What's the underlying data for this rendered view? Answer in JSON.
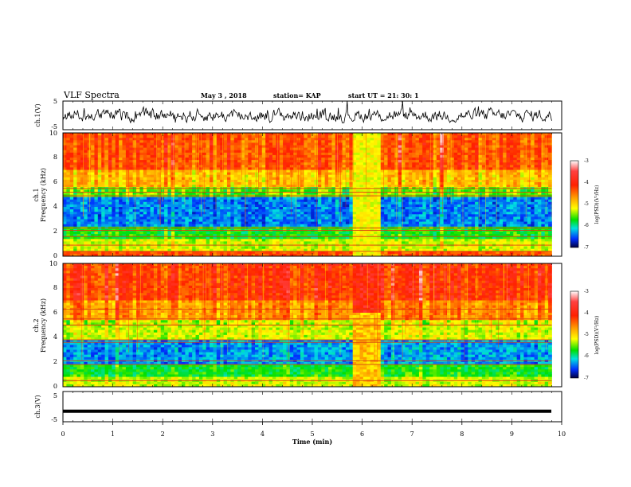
{
  "header": {
    "title": "VLF Spectra",
    "date": "May 3  , 2018",
    "station": "station= KAP",
    "start": "start  UT  =   21: 30: 1"
  },
  "chart_data": [
    {
      "type": "line",
      "name": "ch1-waveform",
      "ylabel": "ch.1(V)",
      "ylim": [
        -5,
        5
      ],
      "yticks": [
        "5",
        "-5"
      ],
      "xlim": [
        0,
        10
      ],
      "trace_center": 0.0,
      "trace_amplitude_approx": 2.2
    },
    {
      "type": "heatmap",
      "name": "ch1-spectrogram",
      "ylabel": "ch.1\nFrequency (kHz)",
      "ylim": [
        0,
        10
      ],
      "yticks": [
        "0",
        "2",
        "4",
        "6",
        "8",
        "10"
      ],
      "xlim": [
        0,
        10
      ],
      "data_end_min": 9.8,
      "colorbar": {
        "label": "log(PSD)(V²/Hz)",
        "range": [
          -7,
          -3
        ],
        "ticks": [
          "-3",
          "-4",
          "-5",
          "-6",
          "-7"
        ]
      },
      "bands_kHz_logpsd": [
        [
          0,
          0.5,
          -4.0
        ],
        [
          0.5,
          1.5,
          -5.0
        ],
        [
          1.5,
          2.5,
          -5.5
        ],
        [
          2.5,
          4.8,
          -6.3
        ],
        [
          4.8,
          5.6,
          -5.3
        ],
        [
          5.6,
          7.0,
          -4.6
        ],
        [
          7.0,
          10,
          -4.0
        ]
      ],
      "horizontal_lines_kHz": [
        0.4,
        0.9,
        1.6,
        2.1,
        2.3,
        4.9,
        5.2,
        5.5
      ],
      "anomaly_min": [
        5.8,
        6.35
      ]
    },
    {
      "type": "heatmap",
      "name": "ch2-spectrogram",
      "ylabel": "ch.2\nFrequency (kHz)",
      "ylim": [
        0,
        10
      ],
      "yticks": [
        "0",
        "2",
        "4",
        "6",
        "8",
        "10"
      ],
      "xlim": [
        0,
        10
      ],
      "data_end_min": 9.8,
      "colorbar": {
        "label": "log(PSD)(V²/Hz)",
        "range": [
          -7,
          -3
        ],
        "ticks": [
          "-3",
          "-4",
          "-5",
          "-6",
          "-7"
        ]
      },
      "bands_kHz_logpsd": [
        [
          0,
          0.8,
          -5.0
        ],
        [
          0.8,
          1.8,
          -5.5
        ],
        [
          1.8,
          3.8,
          -6.2
        ],
        [
          3.8,
          5.5,
          -5.0
        ],
        [
          5.5,
          7.0,
          -4.3
        ],
        [
          7.0,
          10,
          -3.8
        ]
      ],
      "horizontal_lines_kHz": [
        0.5,
        1.8,
        2.1,
        3.6,
        3.8,
        5.0,
        5.5,
        6.3
      ],
      "anomaly_min": [
        5.8,
        6.35
      ]
    },
    {
      "type": "line",
      "name": "ch3-waveform",
      "ylabel": "ch.3(V)",
      "ylim": [
        -5,
        5
      ],
      "yticks": [
        "5",
        "-5"
      ],
      "xlim": [
        0,
        10
      ],
      "trace_value": -1.5,
      "xlabel": "Time  (min)",
      "xticks": [
        "0",
        "1",
        "2",
        "3",
        "4",
        "5",
        "6",
        "7",
        "8",
        "9",
        "10"
      ]
    }
  ]
}
